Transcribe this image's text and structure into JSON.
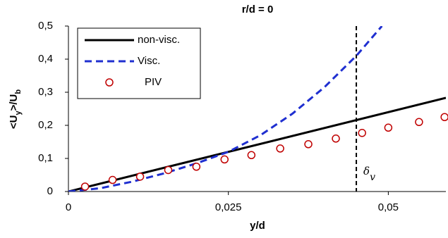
{
  "chart_data": {
    "type": "line",
    "title": "r/d = 0",
    "xlabel": "y/d",
    "ylabel_parts": [
      "<U",
      "y",
      ">/U",
      "b"
    ],
    "xlim": [
      0,
      0.059
    ],
    "ylim": [
      0,
      0.5
    ],
    "xticks": [
      0,
      {
        "value": 0.025,
        "label": "0,025"
      },
      {
        "value": 0.05,
        "label": "0,05"
      }
    ],
    "yticks": [
      0,
      {
        "value": 0.1,
        "label": "0,1"
      },
      {
        "value": 0.2,
        "label": "0,2"
      },
      {
        "value": 0.3,
        "label": "0,3"
      },
      {
        "value": 0.4,
        "label": "0,4"
      },
      {
        "value": 0.5,
        "label": "0,5"
      }
    ],
    "series": [
      {
        "name": "non-visc.",
        "color": "#000000",
        "style": "solid",
        "x": [
          0,
          0.059
        ],
        "values": [
          0,
          0.283
        ]
      },
      {
        "name": "Visc.",
        "color": "#1f2fd0",
        "style": "dashed",
        "x": [
          0,
          0.005,
          0.01,
          0.015,
          0.02,
          0.025,
          0.03,
          0.035,
          0.04,
          0.045,
          0.049
        ],
        "values": [
          0,
          0.01,
          0.03,
          0.055,
          0.085,
          0.12,
          0.17,
          0.235,
          0.315,
          0.41,
          0.5
        ]
      },
      {
        "name": "PIV",
        "color": "#c00000",
        "style": "markers",
        "x": [
          0.0026,
          0.0069,
          0.0112,
          0.0156,
          0.02,
          0.0244,
          0.0286,
          0.0331,
          0.0375,
          0.0418,
          0.0459,
          0.05,
          0.0548,
          0.0588
        ],
        "values": [
          0.015,
          0.035,
          0.045,
          0.065,
          0.075,
          0.097,
          0.11,
          0.13,
          0.143,
          0.16,
          0.177,
          0.193,
          0.21,
          0.225
        ]
      }
    ],
    "annotation": {
      "x": 0.045,
      "label": "δ",
      "sub": "v"
    }
  }
}
